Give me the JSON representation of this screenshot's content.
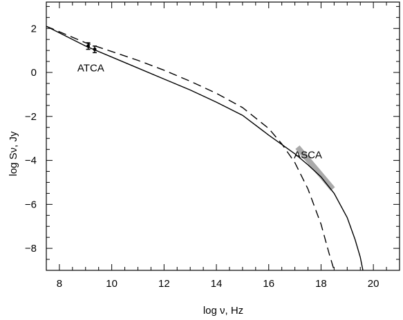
{
  "chart_data": {
    "type": "line",
    "title": "",
    "xlabel": "log ν, Hz",
    "ylabel": "log Sν, Jy",
    "xlim": [
      7.5,
      21
    ],
    "ylim": [
      -9,
      3.2
    ],
    "xticks": [
      8,
      10,
      12,
      14,
      16,
      18,
      20
    ],
    "yticks": [
      2,
      0,
      -2,
      -4,
      -6,
      -8
    ],
    "ytick_labels": [
      "2",
      "0",
      "−2",
      "−4",
      "−6",
      "−8"
    ],
    "grid": false,
    "legend": "none",
    "series": [
      {
        "style": "solid",
        "x": [
          7.5,
          8.0,
          9.0,
          10.0,
          11.0,
          12.0,
          13.0,
          14.0,
          15.0,
          16.0,
          17.0,
          17.5,
          18.0,
          18.5,
          19.0,
          19.3,
          19.5,
          19.6
        ],
        "y": [
          2.1,
          1.8,
          1.2,
          0.7,
          0.2,
          -0.3,
          -0.8,
          -1.35,
          -1.95,
          -2.85,
          -3.7,
          -4.2,
          -4.75,
          -5.5,
          -6.6,
          -7.6,
          -8.4,
          -9.0
        ]
      },
      {
        "style": "dashed",
        "x": [
          7.5,
          8.0,
          9.0,
          10.0,
          11.0,
          12.0,
          13.0,
          14.0,
          15.0,
          16.0,
          16.5,
          17.0,
          17.5,
          18.0,
          18.3,
          18.5
        ],
        "y": [
          2.1,
          1.85,
          1.35,
          0.95,
          0.55,
          0.1,
          -0.4,
          -0.95,
          -1.6,
          -2.55,
          -3.25,
          -4.1,
          -5.3,
          -6.9,
          -8.2,
          -9.0
        ]
      }
    ],
    "data_points": [
      {
        "x": 9.1,
        "y": 1.2,
        "yerr": 0.15
      },
      {
        "x": 9.35,
        "y": 1.05,
        "yerr": 0.15
      }
    ],
    "band": {
      "label": "ASCA",
      "x": [
        17.1,
        18.45
      ],
      "y": [
        -3.4,
        -5.3
      ],
      "color": "#aaaaaa"
    },
    "annotations": [
      {
        "text": "ATCA",
        "x": 9.2,
        "y": 0.05
      },
      {
        "text": "ASCA",
        "x": 17.5,
        "y": -3.9
      }
    ]
  }
}
